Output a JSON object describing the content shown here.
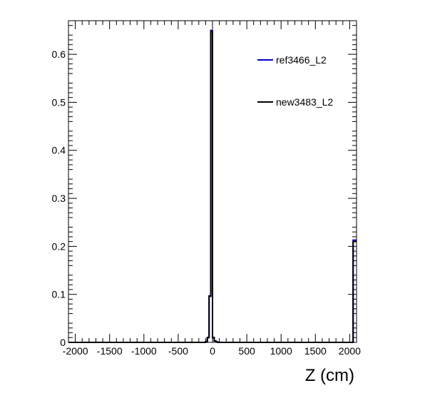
{
  "chart_data": {
    "type": "line",
    "title": "",
    "xlabel": "Z (cm)",
    "ylabel": "",
    "xlim": [
      -2100,
      2100
    ],
    "ylim": [
      0,
      0.67
    ],
    "grid": false,
    "legend_placement": "top-right",
    "xticks": [
      -2000,
      -1500,
      -1000,
      -500,
      0,
      500,
      1000,
      1500,
      2000
    ],
    "xtick_labels": [
      "-2000",
      "-1500",
      "-1000",
      "-500",
      "0",
      "500",
      "1000",
      "1500",
      "2000"
    ],
    "yticks": [
      0,
      0.1,
      0.2,
      0.3,
      0.4,
      0.5,
      0.6
    ],
    "ytick_labels": [
      "0",
      "0.1",
      "0.2",
      "0.3",
      "0.4",
      "0.5",
      "0.6"
    ],
    "bin_edges": [
      -2100,
      -100,
      -75,
      -50,
      -25,
      0,
      25,
      50,
      75,
      100,
      2050,
      2100
    ],
    "series": [
      {
        "name": "ref3466_L2",
        "color": "#0000cc",
        "values": [
          0,
          0.002,
          0.01,
          0.097,
          0.65,
          0.01,
          0.003,
          0.001,
          0,
          0,
          0.213
        ]
      },
      {
        "name": "new3483_L2",
        "color": "#000000",
        "values": [
          0,
          0.002,
          0.01,
          0.096,
          0.647,
          0.01,
          0.003,
          0.001,
          0,
          0,
          0.21
        ]
      }
    ]
  }
}
